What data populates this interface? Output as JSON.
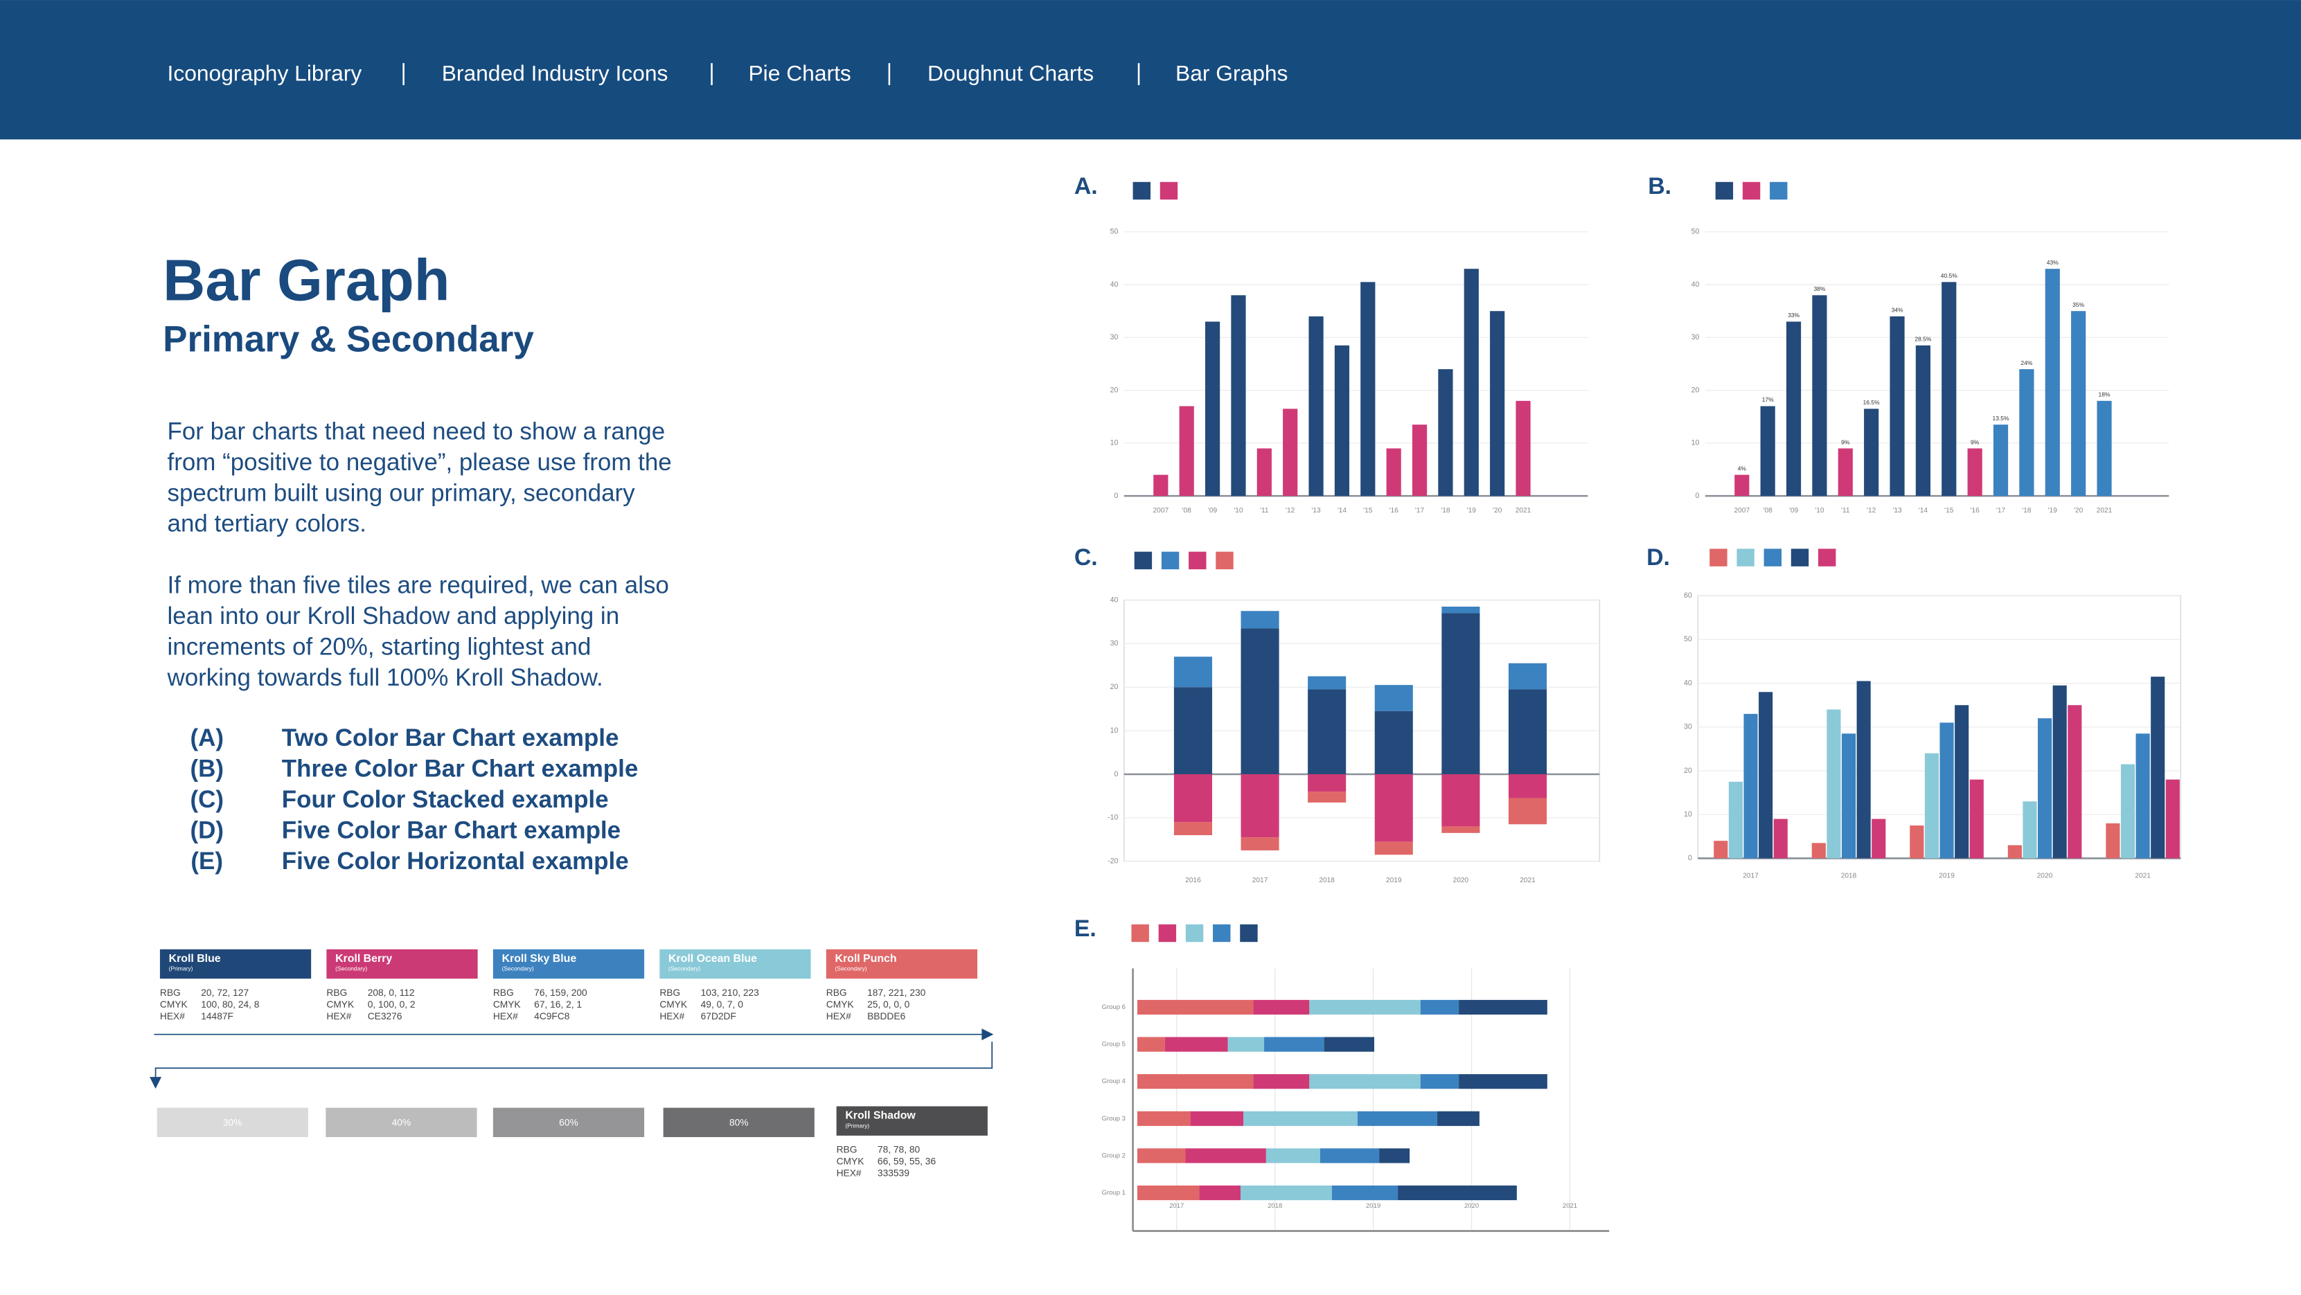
{
  "nav": {
    "items": [
      "Iconography Library",
      "Branded Industry Icons",
      "Pie Charts",
      "Doughnut Charts",
      "Bar Graphs"
    ]
  },
  "heading": {
    "title": "Bar Graph",
    "subtitle": "Primary & Secondary"
  },
  "body": {
    "paragraphs": [
      [
        "For bar charts that need need to show a range",
        "from “positive to negative”, please use from the",
        "spectrum built using our primary, secondary",
        "and tertiary colors."
      ],
      [
        "If more than five tiles are required, we can also",
        "lean into our Kroll Shadow and applying in",
        "increments of 20%, starting lightest and",
        "working towards full 100% Kroll Shadow."
      ]
    ]
  },
  "examples": [
    {
      "label": "(A)",
      "text": "Two Color Bar Chart example"
    },
    {
      "label": "(B)",
      "text": "Three Color Bar Chart example"
    },
    {
      "label": "(C)",
      "text": "Four Color Stacked example"
    },
    {
      "label": "(D)",
      "text": "Five Color Bar Chart example"
    },
    {
      "label": "(E)",
      "text": "Five Color Horizontal example"
    }
  ],
  "palette": {
    "swatches": [
      {
        "name": "Kroll Blue",
        "role": "(Primary)",
        "color": "#1f4878",
        "rows": [
          {
            "label": "RBG",
            "value": "20, 72, 127"
          },
          {
            "label": "CMYK",
            "value": "100, 80, 24, 8"
          },
          {
            "label": "HEX#",
            "value": "14487F"
          }
        ]
      },
      {
        "name": "Kroll Berry",
        "role": "(Secondary)",
        "color": "#cc3a75",
        "rows": [
          {
            "label": "RBG",
            "value": "208, 0, 112"
          },
          {
            "label": "CMYK",
            "value": "0, 100, 0, 2"
          },
          {
            "label": "HEX#",
            "value": "CE3276"
          }
        ]
      },
      {
        "name": "Kroll Sky Blue",
        "role": "(Secondary)",
        "color": "#3d82bf",
        "rows": [
          {
            "label": "RBG",
            "value": "76, 159, 200"
          },
          {
            "label": "CMYK",
            "value": "67, 16, 2, 1"
          },
          {
            "label": "HEX#",
            "value": "4C9FC8"
          }
        ]
      },
      {
        "name": "Kroll Ocean Blue",
        "role": "(Secondary)",
        "color": "#8ac9d8",
        "rows": [
          {
            "label": "RBG",
            "value": "103, 210, 223"
          },
          {
            "label": "CMYK",
            "value": "49, 0, 7, 0"
          },
          {
            "label": "HEX#",
            "value": "67D2DF"
          }
        ]
      },
      {
        "name": "Kroll Punch",
        "role": "(Secondary)",
        "color": "#e06767",
        "rows": [
          {
            "label": "RBG",
            "value": "187, 221, 230"
          },
          {
            "label": "CMYK",
            "value": "25, 0, 0, 0"
          },
          {
            "label": "HEX#",
            "value": "BBDDE6"
          }
        ]
      }
    ],
    "shades": [
      {
        "label": "30%",
        "color": "#dadadb"
      },
      {
        "label": "40%",
        "color": "#bcbcbd"
      },
      {
        "label": "60%",
        "color": "#959597"
      },
      {
        "label": "80%",
        "color": "#6e6e70"
      }
    ],
    "shadow": {
      "name": "Kroll Shadow",
      "role": "(Primary)",
      "color": "#4e4e50",
      "rows": [
        {
          "label": "RBG",
          "value": "78, 78, 80"
        },
        {
          "label": "CMYK",
          "value": "66, 59, 55, 36"
        },
        {
          "label": "HEX#",
          "value": "333539"
        }
      ]
    }
  },
  "chart_data": [
    {
      "type": "bar",
      "title": "A.",
      "grid": true,
      "categories": [
        "2007",
        "'08",
        "'09",
        "'10",
        "'11",
        "'12",
        "'13",
        "'14",
        "'15",
        "'16",
        "'17",
        "'18",
        "'19",
        "'20",
        "2021"
      ],
      "ylim": [
        0,
        50
      ],
      "yticks": [
        0,
        10,
        20,
        30,
        40,
        50
      ],
      "series": [
        {
          "color": "#234a7a",
          "values": [
            null,
            null,
            33,
            38,
            null,
            null,
            34,
            28.5,
            40.5,
            null,
            null,
            24,
            43,
            35,
            null
          ]
        },
        {
          "color": "#cf3a76",
          "values": [
            4,
            17,
            null,
            null,
            9,
            16.5,
            null,
            null,
            null,
            9,
            13.5,
            null,
            null,
            null,
            18
          ]
        }
      ]
    },
    {
      "type": "bar",
      "title": "B.",
      "grid": true,
      "categories": [
        "2007",
        "'08",
        "'09",
        "'10",
        "'11",
        "'12",
        "'13",
        "'14",
        "'15",
        "'16",
        "'17",
        "'18",
        "'19",
        "'20",
        "2021"
      ],
      "ylim": [
        0,
        50
      ],
      "yticks": [
        0,
        10,
        20,
        30,
        40,
        50
      ],
      "series": [
        {
          "color": "#234a7a",
          "values": [
            null,
            17,
            33,
            38,
            null,
            16.5,
            34,
            28.5,
            40.5,
            null,
            null,
            null,
            null,
            null,
            null
          ],
          "value_labels": [
            null,
            "17%",
            "33%",
            "38%",
            null,
            "16.5%",
            "34%",
            "28.5%",
            "40.5%",
            null,
            null,
            null,
            null,
            null,
            null
          ]
        },
        {
          "color": "#cf3a76",
          "values": [
            4,
            null,
            null,
            null,
            9,
            null,
            null,
            null,
            null,
            9,
            null,
            null,
            null,
            null,
            null
          ],
          "value_labels": [
            "4%",
            null,
            null,
            null,
            "9%",
            null,
            null,
            null,
            null,
            "9%",
            null,
            null,
            null,
            null,
            null
          ]
        },
        {
          "color": "#3b82c0",
          "values": [
            null,
            null,
            null,
            null,
            null,
            null,
            null,
            null,
            null,
            null,
            13.5,
            24,
            43,
            35,
            18
          ],
          "value_labels": [
            null,
            null,
            null,
            null,
            null,
            null,
            null,
            null,
            null,
            null,
            "13.5%",
            "24%",
            "43%",
            "35%",
            "18%"
          ]
        }
      ]
    },
    {
      "type": "bar",
      "title": "C.",
      "stacked": true,
      "grid": true,
      "categories": [
        "2016",
        "2017",
        "2018",
        "2019",
        "2020",
        "2021"
      ],
      "ylim": [
        -20,
        40
      ],
      "yticks": [
        -20,
        -10,
        0,
        10,
        20,
        30,
        40
      ],
      "series": [
        {
          "color": "#234a7a",
          "values": [
            20,
            33.5,
            19.5,
            14.5,
            37,
            19.5
          ]
        },
        {
          "color": "#3b82c0",
          "values": [
            7,
            4,
            3,
            6,
            1.5,
            6
          ]
        },
        {
          "color": "#cf3a76",
          "values": [
            -11,
            -14.5,
            -4,
            -15.5,
            -12,
            -5.5
          ]
        },
        {
          "color": "#e06767",
          "values": [
            -3,
            -3,
            -2.5,
            -3,
            -1.5,
            -6
          ]
        }
      ]
    },
    {
      "type": "bar",
      "title": "D.",
      "grid": true,
      "categories": [
        "2017",
        "2018",
        "2019",
        "2020",
        "2021"
      ],
      "ylim": [
        0,
        60
      ],
      "yticks": [
        0,
        10,
        20,
        30,
        40,
        50,
        60
      ],
      "series": [
        {
          "color": "#e06767",
          "values": [
            4,
            3.5,
            7.5,
            3,
            8
          ]
        },
        {
          "color": "#8ac9d8",
          "values": [
            17.5,
            34,
            24,
            13,
            21.5
          ]
        },
        {
          "color": "#3b82c0",
          "values": [
            33,
            28.5,
            31,
            32,
            28.5
          ]
        },
        {
          "color": "#234a7a",
          "values": [
            38,
            40.5,
            35,
            39.5,
            41.5
          ]
        },
        {
          "color": "#cf3a76",
          "values": [
            9,
            9,
            18,
            35,
            18
          ]
        }
      ]
    },
    {
      "type": "bar",
      "title": "E.",
      "horizontal": true,
      "stacked": true,
      "grid": true,
      "categories": [
        "Group 1",
        "Group 2",
        "Group 3",
        "Group 4",
        "Group 5",
        "Group 6"
      ],
      "xlim": [
        0,
        48
      ],
      "xticks": [
        {
          "value": 4,
          "label": "2017"
        },
        {
          "value": 14,
          "label": "2018"
        },
        {
          "value": 24,
          "label": "2019"
        },
        {
          "value": 34,
          "label": "2020"
        },
        {
          "value": 44,
          "label": "2021"
        }
      ],
      "series": [
        {
          "color": "#e06767",
          "values": [
            6.3,
            4.9,
            5.4,
            11.8,
            2.8,
            11.8
          ]
        },
        {
          "color": "#cf3a76",
          "values": [
            4.2,
            8.2,
            5.4,
            5.7,
            6.4,
            5.7
          ]
        },
        {
          "color": "#8ac9d8",
          "values": [
            9.3,
            5.5,
            11.6,
            11.3,
            3.7,
            11.3
          ]
        },
        {
          "color": "#3b82c0",
          "values": [
            6.7,
            6,
            8.1,
            3.9,
            6.1,
            3.9
          ]
        },
        {
          "color": "#234a7a",
          "values": [
            12.1,
            3.1,
            4.3,
            9,
            5.1,
            9
          ]
        }
      ]
    }
  ]
}
